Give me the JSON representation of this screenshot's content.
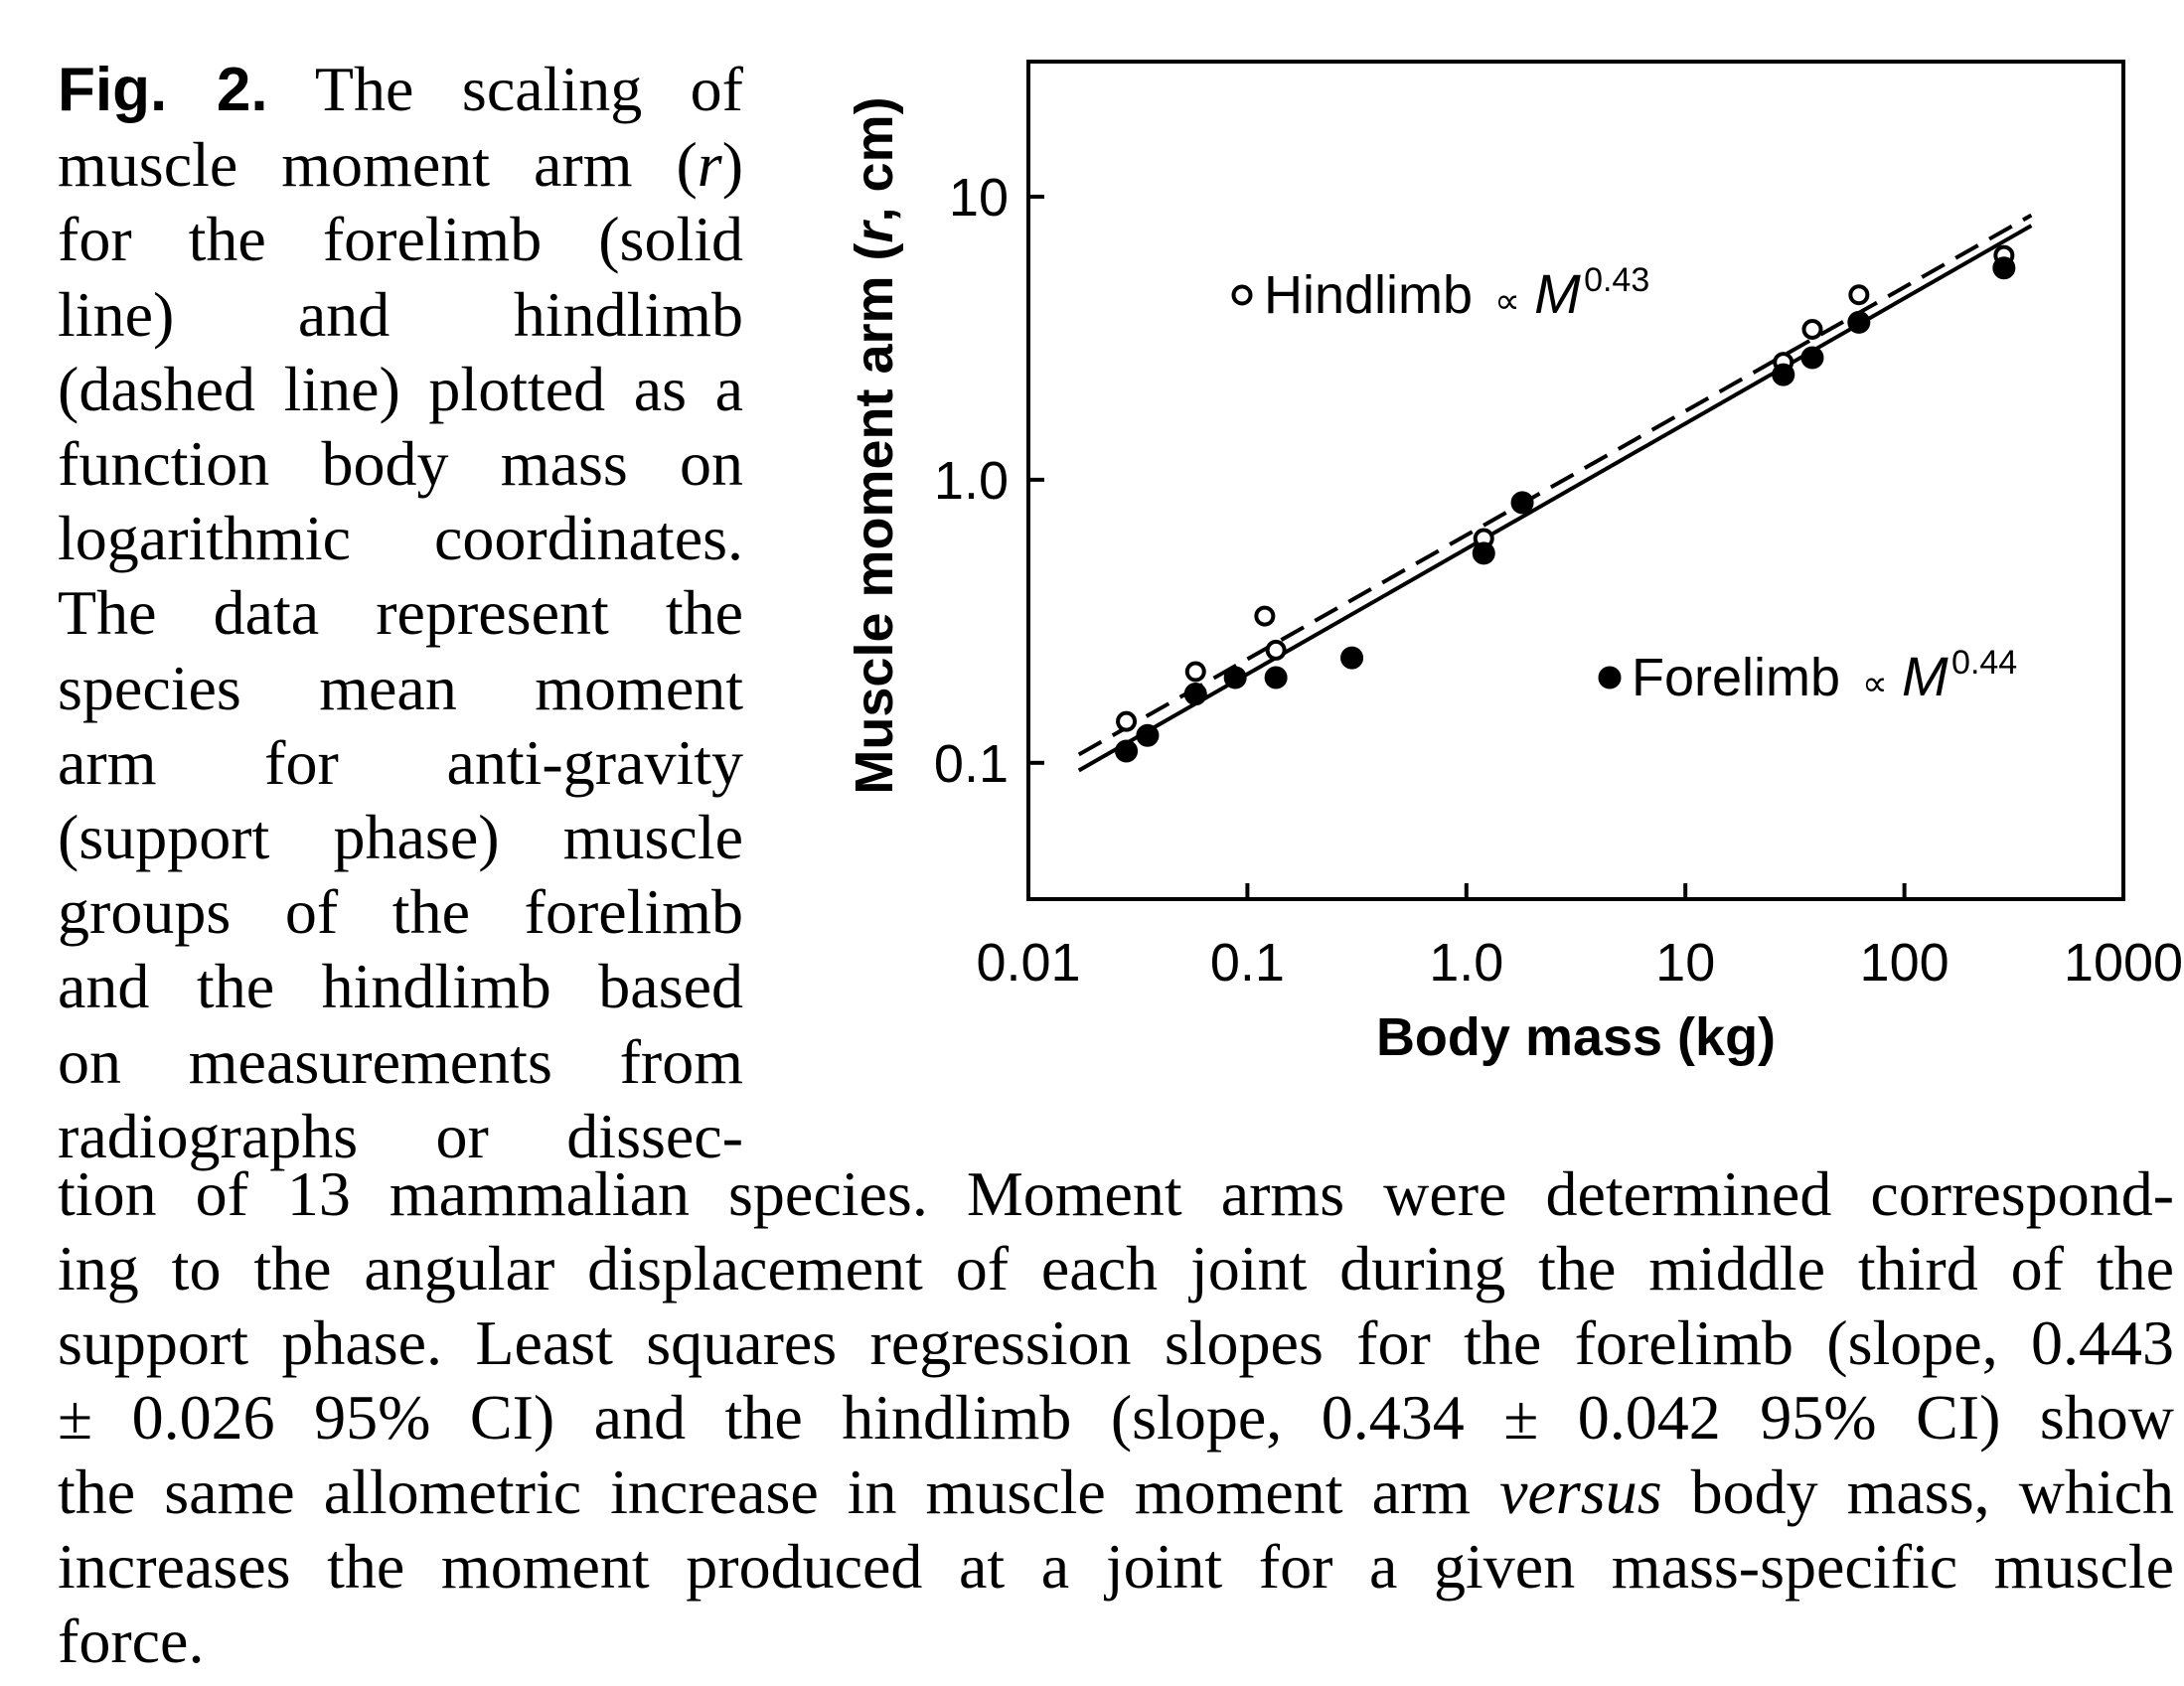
{
  "caption": {
    "fig_label": "Fig. 2.",
    "top_lines": [
      "The scaling of",
      "muscle moment arm (r)",
      "for the forelimb (solid",
      "line) and hindlimb",
      "(dashed line) plotted as a",
      "function body mass on",
      "logarithmic coordinates.",
      "The data represent the",
      "species mean moment",
      "arm for anti-gravity",
      "(support phase) muscle",
      "groups of the forelimb",
      "and the hindlimb based",
      "on measurements from",
      "radiographs or dissec-"
    ],
    "bottom_lines": [
      "tion of 13 mammalian species. Moment arms were determined correspond-",
      "ing to the angular displacement of each joint during the middle third of the",
      "support phase. Least squares regression slopes for the forelimb (slope, 0.443",
      "± 0.026 95% CI) and the hindlimb (slope, 0.434 ± 0.042 95% CI) show",
      "the same allometric increase in muscle moment arm versus body mass, which",
      "increases the moment produced at a joint for a given mass-specific muscle",
      "force."
    ]
  },
  "chart_data": {
    "type": "scatter",
    "x_scale": "log",
    "y_scale": "log",
    "xlim": [
      0.01,
      1000
    ],
    "ylim": [
      0.033,
      30
    ],
    "xlabel": "Body mass (kg)",
    "ylabel": "Muscle moment arm (r, cm)",
    "x_ticks": [
      0.01,
      0.1,
      1.0,
      10,
      100,
      1000
    ],
    "x_tick_labels": [
      "0.01",
      "0.1",
      "1.0",
      "10",
      "100",
      "1000"
    ],
    "y_ticks": [
      0.1,
      1.0,
      10
    ],
    "y_tick_labels": [
      "0.1",
      "1.0",
      "10"
    ],
    "grid": false,
    "series": [
      {
        "name": "Hindlimb",
        "marker": "open-circle",
        "line_style": "dashed",
        "fit_label": "∝ M",
        "fit_exponent": "0.43",
        "points": [
          {
            "x": 0.028,
            "y": 0.14
          },
          {
            "x": 0.058,
            "y": 0.21
          },
          {
            "x": 0.12,
            "y": 0.33
          },
          {
            "x": 0.135,
            "y": 0.25
          },
          {
            "x": 1.2,
            "y": 0.62
          },
          {
            "x": 28,
            "y": 2.6
          },
          {
            "x": 38,
            "y": 3.4
          },
          {
            "x": 62,
            "y": 4.5
          },
          {
            "x": 285,
            "y": 6.2
          }
        ],
        "fit": {
          "x": [
            0.017,
            380
          ],
          "y": [
            0.107,
            8.6
          ]
        }
      },
      {
        "name": "Forelimb",
        "marker": "filled-circle",
        "line_style": "solid",
        "fit_label": "∝ M",
        "fit_exponent": "0.44",
        "points": [
          {
            "x": 0.028,
            "y": 0.11
          },
          {
            "x": 0.035,
            "y": 0.125
          },
          {
            "x": 0.058,
            "y": 0.175
          },
          {
            "x": 0.088,
            "y": 0.2
          },
          {
            "x": 0.135,
            "y": 0.2
          },
          {
            "x": 0.3,
            "y": 0.235
          },
          {
            "x": 1.2,
            "y": 0.55
          },
          {
            "x": 1.8,
            "y": 0.83
          },
          {
            "x": 28,
            "y": 2.35
          },
          {
            "x": 38,
            "y": 2.7
          },
          {
            "x": 62,
            "y": 3.6
          },
          {
            "x": 285,
            "y": 5.6
          }
        ],
        "fit": {
          "x": [
            0.017,
            380
          ],
          "y": [
            0.094,
            7.9
          ]
        }
      }
    ]
  }
}
